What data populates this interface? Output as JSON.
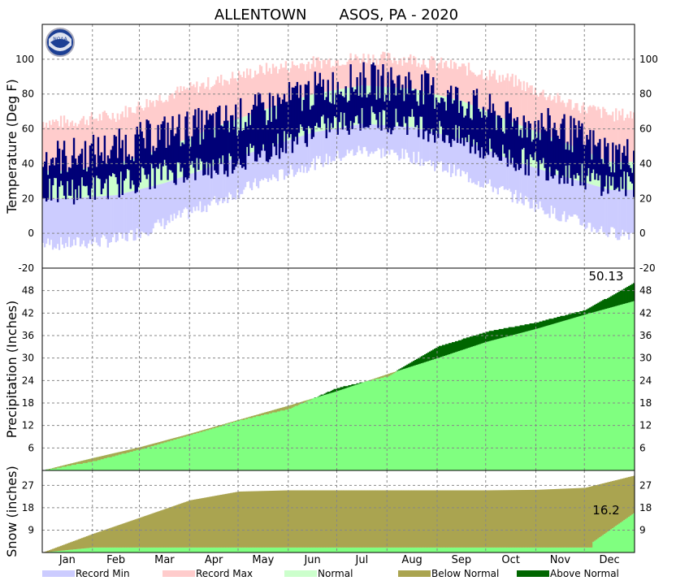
{
  "title": "ALLENTOWN       ASOS, PA - 2020",
  "colors": {
    "record_min": "#ccccff",
    "record_max": "#ffcccc",
    "normal": "#ccffcc",
    "observed": "#000077",
    "precip_normal": "#80ff80",
    "below_normal": "#aaa450",
    "above_normal": "#006600",
    "grid": "#888888"
  },
  "chart_data": [
    {
      "type": "bar",
      "panel": "temperature",
      "ylabel": "Temperature (Deg F)",
      "ylim": [
        -20,
        120
      ],
      "yticks": [
        100,
        80,
        60,
        40,
        20,
        0,
        -20
      ],
      "grid": true,
      "observed_max_monthly": [
        44,
        49,
        58,
        63,
        71,
        82,
        88,
        85,
        76,
        64,
        60,
        45
      ],
      "observed_min_monthly": [
        24,
        28,
        35,
        38,
        47,
        59,
        66,
        64,
        53,
        43,
        36,
        28
      ],
      "normal_high_monthly": [
        36,
        40,
        49,
        61,
        71,
        80,
        85,
        83,
        76,
        64,
        53,
        41
      ],
      "normal_low_monthly": [
        20,
        22,
        29,
        39,
        49,
        58,
        63,
        61,
        54,
        42,
        33,
        25
      ],
      "record_high_monthly": [
        64,
        68,
        79,
        87,
        94,
        98,
        101,
        100,
        95,
        88,
        76,
        68
      ],
      "record_low_monthly": [
        -6,
        -4,
        6,
        18,
        30,
        40,
        48,
        44,
        34,
        22,
        10,
        0
      ]
    },
    {
      "type": "area",
      "panel": "precipitation",
      "ylabel": "Precipitation (Inches)",
      "ylim": [
        0,
        54
      ],
      "yticks": [
        48,
        42,
        36,
        30,
        24,
        18,
        12,
        6
      ],
      "grid": true,
      "annotation": "50.13",
      "normal_cumulative_monthly_end": [
        3.3,
        6.2,
        9.8,
        13.5,
        17.3,
        21.2,
        25.7,
        30.0,
        34.3,
        37.8,
        41.6,
        45.3
      ],
      "observed_cumulative_monthly_end": [
        2.4,
        5.6,
        9.4,
        13.3,
        16.4,
        22.0,
        25.1,
        33.0,
        37.0,
        39.5,
        42.8,
        50.13
      ]
    },
    {
      "type": "area",
      "panel": "snow",
      "ylabel": "Snow (inches)",
      "ylim": [
        0,
        33
      ],
      "yticks": [
        27,
        18,
        9
      ],
      "grid": true,
      "annotation": "16.2",
      "normal_cumulative_monthly_end": [
        7.5,
        14.0,
        21.0,
        24.5,
        25.0,
        25.0,
        25.0,
        25.0,
        25.0,
        25.2,
        26.0,
        31.0
      ],
      "observed_cumulative_monthly_end": [
        2.0,
        2.0,
        2.0,
        2.0,
        2.0,
        2.0,
        2.0,
        2.0,
        2.0,
        2.0,
        2.0,
        16.2
      ]
    }
  ],
  "x_axis": {
    "months": [
      "Jan",
      "Feb",
      "Mar",
      "Apr",
      "May",
      "Jun",
      "Jul",
      "Aug",
      "Sep",
      "Oct",
      "Nov",
      "Dec"
    ]
  },
  "legend": [
    {
      "label": "Record Min",
      "color": "#ccccff"
    },
    {
      "label": "Record Max",
      "color": "#ffcccc"
    },
    {
      "label": "Normal",
      "color": "#ccffcc"
    },
    {
      "label": "Below Normal",
      "color": "#aaa450"
    },
    {
      "label": "Above Normal",
      "color": "#006600"
    }
  ]
}
